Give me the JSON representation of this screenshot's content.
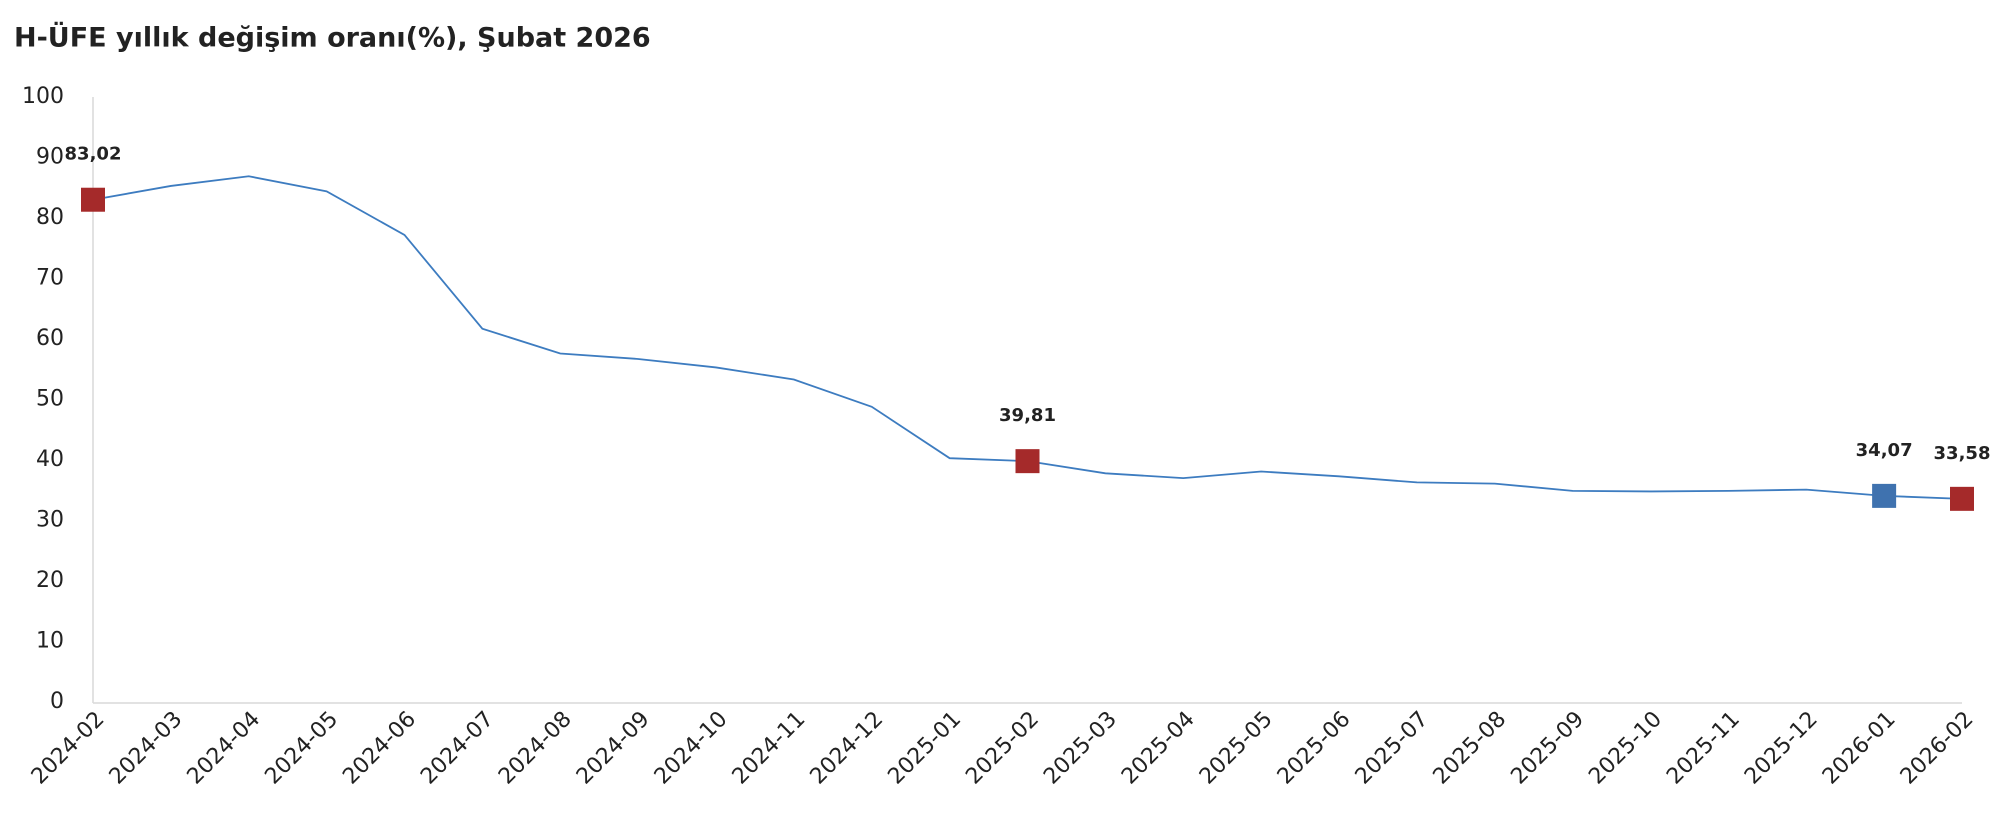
{
  "chart_data": {
    "type": "line",
    "title": "H-ÜFE yıllık değişim oranı(%), Şubat 2026",
    "categories": [
      "2024-02",
      "2024-03",
      "2024-04",
      "2024-05",
      "2024-06",
      "2024-07",
      "2024-08",
      "2024-09",
      "2024-10",
      "2024-11",
      "2024-12",
      "2025-01",
      "2025-02",
      "2025-03",
      "2025-04",
      "2025-05",
      "2025-06",
      "2025-07",
      "2025-08",
      "2025-09",
      "2025-10",
      "2025-11",
      "2025-12",
      "2026-01",
      "2026-02"
    ],
    "series": [
      {
        "color": "#3d7cc0",
        "values": [
          83.02,
          85.3,
          86.9,
          84.4,
          77.2,
          61.7,
          57.6,
          56.7,
          55.3,
          53.3,
          48.8,
          40.3,
          39.81,
          37.8,
          37.0,
          38.1,
          37.3,
          36.3,
          36.1,
          34.9,
          34.8,
          34.9,
          35.1,
          34.07,
          33.58
        ],
        "value_labels": [
          "83,02",
          null,
          null,
          null,
          null,
          null,
          null,
          null,
          null,
          null,
          null,
          null,
          "39,81",
          null,
          null,
          null,
          null,
          null,
          null,
          null,
          null,
          null,
          null,
          "34,07",
          "33,58"
        ],
        "marker_colors": [
          "#a52a2a",
          null,
          null,
          null,
          null,
          null,
          null,
          null,
          null,
          null,
          null,
          null,
          "#a52a2a",
          null,
          null,
          null,
          null,
          null,
          null,
          null,
          null,
          null,
          null,
          "#3f72af",
          "#a52a2a"
        ]
      }
    ],
    "ylim": [
      0,
      100
    ],
    "yticks": [
      0,
      10,
      20,
      30,
      40,
      50,
      60,
      70,
      80,
      90,
      100
    ],
    "grid": false
  }
}
